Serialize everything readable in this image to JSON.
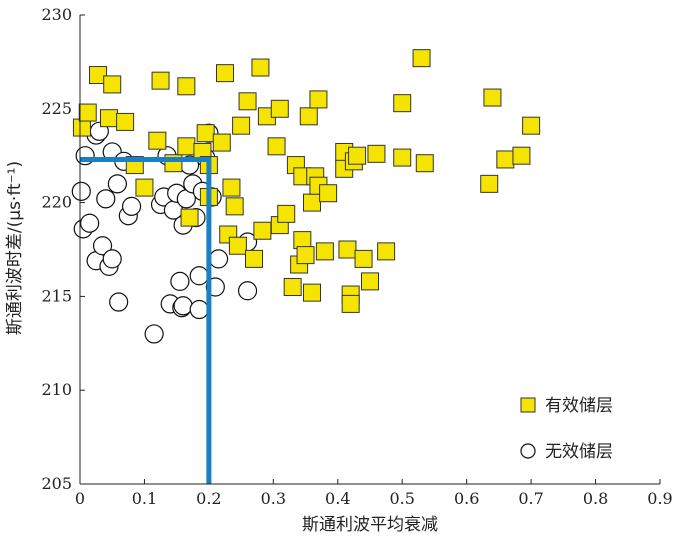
{
  "chart_data": {
    "type": "scatter",
    "xlabel": "斯通利波平均衰减",
    "ylabel": "斯通利波时差/(μs·ft⁻¹)",
    "xlim": [
      0,
      0.9
    ],
    "ylim": [
      205,
      230
    ],
    "xticks": [
      "0",
      "0.1",
      "0.2",
      "0.3",
      "0.4",
      "0.5",
      "0.6",
      "0.7",
      "0.8",
      "0.9"
    ],
    "yticks": [
      "205",
      "210",
      "215",
      "220",
      "225",
      "230"
    ],
    "grid": false,
    "legend_position": "bottom-right",
    "series": [
      {
        "name": "有效储层",
        "marker": "square",
        "fill": "#f5e400",
        "edge": "#333333",
        "points": [
          [
            0.003,
            224.0
          ],
          [
            0.012,
            224.8
          ],
          [
            0.028,
            226.8
          ],
          [
            0.045,
            224.5
          ],
          [
            0.05,
            226.3
          ],
          [
            0.07,
            224.3
          ],
          [
            0.085,
            222.0
          ],
          [
            0.1,
            220.8
          ],
          [
            0.12,
            223.3
          ],
          [
            0.125,
            226.5
          ],
          [
            0.145,
            222.1
          ],
          [
            0.165,
            223.0
          ],
          [
            0.165,
            226.2
          ],
          [
            0.17,
            219.2
          ],
          [
            0.19,
            222.7
          ],
          [
            0.195,
            223.7
          ],
          [
            0.2,
            222.0
          ],
          [
            0.2,
            220.3
          ],
          [
            0.22,
            223.2
          ],
          [
            0.225,
            226.9
          ],
          [
            0.23,
            218.3
          ],
          [
            0.235,
            220.8
          ],
          [
            0.24,
            219.8
          ],
          [
            0.245,
            217.7
          ],
          [
            0.25,
            224.1
          ],
          [
            0.26,
            225.4
          ],
          [
            0.27,
            217.0
          ],
          [
            0.28,
            227.2
          ],
          [
            0.283,
            218.5
          ],
          [
            0.29,
            224.6
          ],
          [
            0.305,
            223.0
          ],
          [
            0.31,
            225.0
          ],
          [
            0.31,
            218.8
          ],
          [
            0.32,
            219.4
          ],
          [
            0.33,
            215.5
          ],
          [
            0.335,
            222.0
          ],
          [
            0.34,
            216.7
          ],
          [
            0.345,
            218.0
          ],
          [
            0.345,
            221.4
          ],
          [
            0.35,
            217.2
          ],
          [
            0.355,
            224.6
          ],
          [
            0.36,
            215.2
          ],
          [
            0.36,
            220.0
          ],
          [
            0.365,
            221.4
          ],
          [
            0.37,
            225.5
          ],
          [
            0.37,
            220.9
          ],
          [
            0.38,
            217.4
          ],
          [
            0.385,
            220.5
          ],
          [
            0.41,
            222.7
          ],
          [
            0.41,
            221.8
          ],
          [
            0.415,
            217.5
          ],
          [
            0.42,
            215.1
          ],
          [
            0.42,
            214.6
          ],
          [
            0.425,
            222.2
          ],
          [
            0.43,
            222.5
          ],
          [
            0.44,
            217.0
          ],
          [
            0.45,
            215.8
          ],
          [
            0.46,
            222.6
          ],
          [
            0.475,
            217.4
          ],
          [
            0.5,
            222.4
          ],
          [
            0.5,
            225.3
          ],
          [
            0.53,
            227.7
          ],
          [
            0.535,
            222.1
          ],
          [
            0.635,
            221.0
          ],
          [
            0.64,
            225.6
          ],
          [
            0.66,
            222.3
          ],
          [
            0.685,
            222.5
          ],
          [
            0.7,
            224.1
          ]
        ]
      },
      {
        "name": "无效储层",
        "marker": "circle",
        "fill": "#ffffff",
        "edge": "#111111",
        "points": [
          [
            0.002,
            220.6
          ],
          [
            0.005,
            218.6
          ],
          [
            0.008,
            222.5
          ],
          [
            0.015,
            218.9
          ],
          [
            0.025,
            223.6
          ],
          [
            0.025,
            216.9
          ],
          [
            0.03,
            223.8
          ],
          [
            0.035,
            217.7
          ],
          [
            0.04,
            220.2
          ],
          [
            0.045,
            216.6
          ],
          [
            0.05,
            222.7
          ],
          [
            0.05,
            217.0
          ],
          [
            0.058,
            221.0
          ],
          [
            0.06,
            214.7
          ],
          [
            0.068,
            222.2
          ],
          [
            0.075,
            219.3
          ],
          [
            0.08,
            219.8
          ],
          [
            0.115,
            213.0
          ],
          [
            0.125,
            219.9
          ],
          [
            0.13,
            220.3
          ],
          [
            0.135,
            222.5
          ],
          [
            0.14,
            214.6
          ],
          [
            0.145,
            219.6
          ],
          [
            0.15,
            220.5
          ],
          [
            0.155,
            215.8
          ],
          [
            0.158,
            214.4
          ],
          [
            0.16,
            214.5
          ],
          [
            0.16,
            218.8
          ],
          [
            0.165,
            220.2
          ],
          [
            0.17,
            222.0
          ],
          [
            0.175,
            221.0
          ],
          [
            0.18,
            219.2
          ],
          [
            0.185,
            214.3
          ],
          [
            0.185,
            216.1
          ],
          [
            0.19,
            220.6
          ],
          [
            0.195,
            222.4
          ],
          [
            0.2,
            223.7
          ],
          [
            0.205,
            220.3
          ],
          [
            0.21,
            215.5
          ],
          [
            0.215,
            217.0
          ],
          [
            0.26,
            215.3
          ],
          [
            0.26,
            217.9
          ]
        ]
      }
    ],
    "annotations": {
      "threshold_line": {
        "color": "#1a7fc4",
        "path": [
          [
            0,
            222.3
          ],
          [
            0.2,
            222.3
          ],
          [
            0.2,
            205
          ]
        ]
      }
    }
  }
}
